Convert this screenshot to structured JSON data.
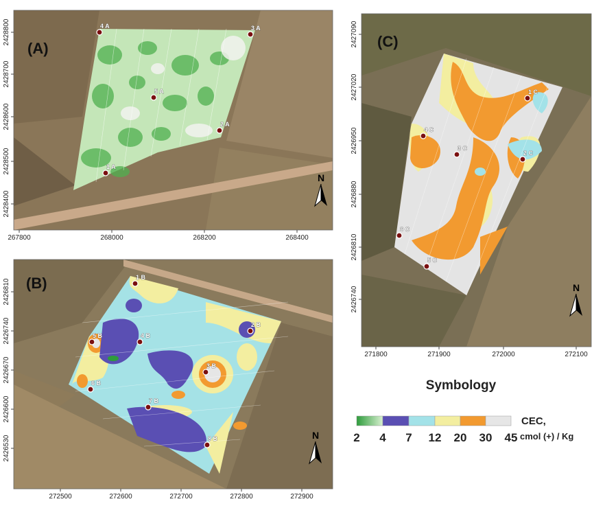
{
  "panels": [
    {
      "label": "(A)",
      "xticks": [
        267800,
        268000,
        268200,
        268400
      ],
      "yticks": [
        2428800,
        2428700,
        2428600,
        2428500,
        2428400
      ],
      "points": [
        "4 A",
        "3 A",
        "5 A",
        "2 A",
        "1 A"
      ],
      "north": "N"
    },
    {
      "label": "(B)",
      "xticks": [
        272500,
        272600,
        272700,
        272800,
        272900
      ],
      "yticks": [
        2426810,
        2426740,
        2426670,
        2426600,
        2426530
      ],
      "points": [
        "1 B",
        "2 B",
        "5 B",
        "4 B",
        "3 B",
        "6 B",
        "7 B",
        "8 B"
      ],
      "north": "N"
    },
    {
      "label": "(C)",
      "xticks": [
        271800,
        271900,
        272000,
        272100
      ],
      "yticks": [
        2427090,
        2427020,
        2426950,
        2426880,
        2426810,
        2426740
      ],
      "points": [
        "1 C",
        "4 C",
        "3 C",
        "2 C",
        "6 C",
        "5 C"
      ],
      "north": "N"
    }
  ],
  "legend": {
    "title": "Symbology",
    "breaks": [
      2,
      4,
      7,
      12,
      20,
      30,
      45
    ],
    "colors": [
      "#2e9c3c",
      "#5a4fb3",
      "#a3e2e8",
      "#f3eea0",
      "#f29a30",
      "#e6e6e6"
    ],
    "unit": [
      "CEC,",
      "cmol (+) / Kg"
    ]
  }
}
